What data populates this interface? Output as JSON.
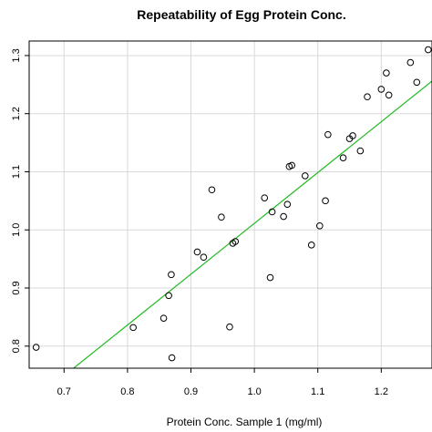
{
  "chart_data": {
    "type": "scatter",
    "title": "Repeatability of Egg Protein Conc.",
    "xlabel": "Protein Conc. Sample 1 (mg/ml)",
    "ylabel": "",
    "xlim": [
      0.645,
      1.28
    ],
    "ylim": [
      0.762,
      1.325
    ],
    "x_ticks": [
      "0.7",
      "0.8",
      "0.9",
      "1.0",
      "1.1",
      "1.2"
    ],
    "y_ticks": [
      "0.8",
      "0.9",
      "1.0",
      "1.1",
      "1.2",
      "1.3"
    ],
    "grid": true,
    "legend": "none",
    "colors": {
      "points": "#000000",
      "fit_line": "#22bb22",
      "grid": "#d9d9d9",
      "axes": "#000000"
    },
    "points": [
      {
        "x": 0.656,
        "y": 0.798
      },
      {
        "x": 0.809,
        "y": 0.832
      },
      {
        "x": 0.857,
        "y": 0.848
      },
      {
        "x": 0.865,
        "y": 0.887
      },
      {
        "x": 0.869,
        "y": 0.923
      },
      {
        "x": 0.87,
        "y": 0.78
      },
      {
        "x": 0.91,
        "y": 0.962
      },
      {
        "x": 0.92,
        "y": 0.953
      },
      {
        "x": 0.933,
        "y": 1.069
      },
      {
        "x": 0.948,
        "y": 1.022
      },
      {
        "x": 0.961,
        "y": 0.833
      },
      {
        "x": 0.966,
        "y": 0.977
      },
      {
        "x": 0.97,
        "y": 0.98
      },
      {
        "x": 1.016,
        "y": 1.055
      },
      {
        "x": 1.025,
        "y": 0.918
      },
      {
        "x": 1.028,
        "y": 1.031
      },
      {
        "x": 1.046,
        "y": 1.023
      },
      {
        "x": 1.052,
        "y": 1.044
      },
      {
        "x": 1.055,
        "y": 1.109
      },
      {
        "x": 1.059,
        "y": 1.111
      },
      {
        "x": 1.08,
        "y": 1.093
      },
      {
        "x": 1.09,
        "y": 0.974
      },
      {
        "x": 1.103,
        "y": 1.007
      },
      {
        "x": 1.112,
        "y": 1.05
      },
      {
        "x": 1.116,
        "y": 1.164
      },
      {
        "x": 1.14,
        "y": 1.124
      },
      {
        "x": 1.15,
        "y": 1.157
      },
      {
        "x": 1.155,
        "y": 1.162
      },
      {
        "x": 1.167,
        "y": 1.136
      },
      {
        "x": 1.178,
        "y": 1.229
      },
      {
        "x": 1.2,
        "y": 1.242
      },
      {
        "x": 1.208,
        "y": 1.27
      },
      {
        "x": 1.212,
        "y": 1.232
      },
      {
        "x": 1.246,
        "y": 1.288
      },
      {
        "x": 1.256,
        "y": 1.254
      },
      {
        "x": 1.274,
        "y": 1.31
      }
    ],
    "fit_line": {
      "x": [
        0.715,
        1.28
      ],
      "y": [
        0.762,
        1.256
      ]
    }
  }
}
